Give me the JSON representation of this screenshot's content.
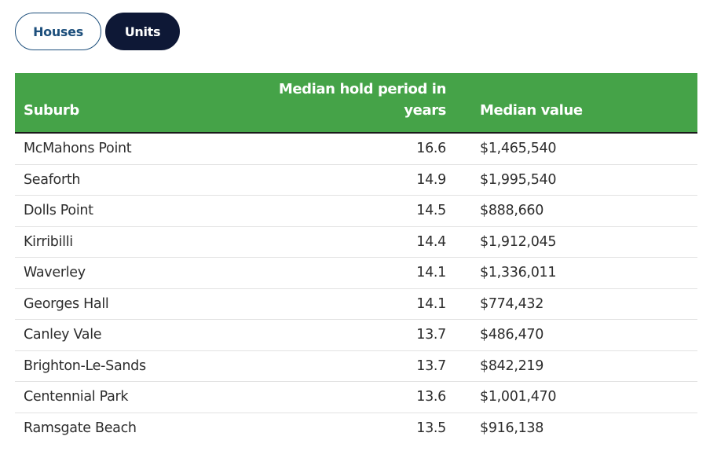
{
  "tabs": {
    "houses_label": "Houses",
    "units_label": "Units",
    "active": "Units"
  },
  "table": {
    "headers": {
      "suburb": "Suburb",
      "hold_period": "Median hold period in years",
      "median_value": "Median value"
    },
    "rows": [
      {
        "suburb": "McMahons Point",
        "hold": "16.6",
        "value": "$1,465,540"
      },
      {
        "suburb": "Seaforth",
        "hold": "14.9",
        "value": "$1,995,540"
      },
      {
        "suburb": "Dolls Point",
        "hold": "14.5",
        "value": "$888,660"
      },
      {
        "suburb": "Kirribilli",
        "hold": "14.4",
        "value": "$1,912,045"
      },
      {
        "suburb": "Waverley",
        "hold": "14.1",
        "value": "$1,336,011"
      },
      {
        "suburb": "Georges Hall",
        "hold": "14.1",
        "value": "$774,432"
      },
      {
        "suburb": "Canley Vale",
        "hold": "13.7",
        "value": "$486,470"
      },
      {
        "suburb": "Brighton-Le-Sands",
        "hold": "13.7",
        "value": "$842,219"
      },
      {
        "suburb": "Centennial Park",
        "hold": "13.6",
        "value": "$1,001,470"
      },
      {
        "suburb": "Ramsgate Beach",
        "hold": "13.5",
        "value": "$916,138"
      }
    ]
  },
  "colors": {
    "header_green": "#45a348",
    "active_tab": "#0e1836",
    "inactive_tab_text": "#1d4f7c"
  }
}
